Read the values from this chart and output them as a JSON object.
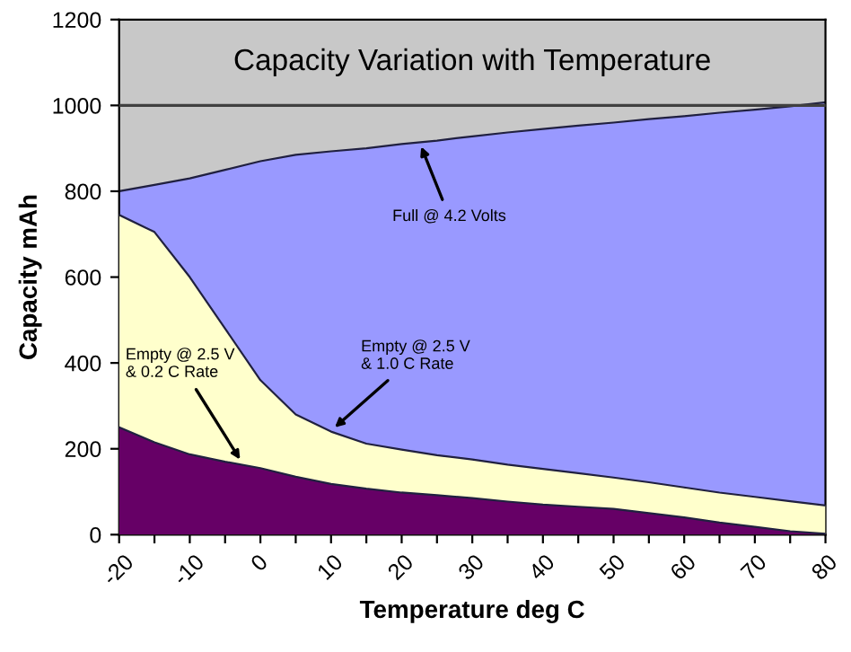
{
  "chart_data": {
    "type": "area",
    "title": "Capacity Variation with Temperature",
    "xlabel": "Temperature deg C",
    "ylabel": "Capacity mAh",
    "x": [
      -20,
      -15,
      -10,
      -5,
      0,
      5,
      10,
      15,
      20,
      25,
      30,
      35,
      40,
      45,
      50,
      55,
      60,
      65,
      70,
      75,
      80
    ],
    "series": [
      {
        "color": "#9999ff",
        "values": [
          800,
          815,
          830,
          850,
          870,
          885,
          893,
          900,
          910,
          918,
          928,
          937,
          945,
          953,
          960,
          968,
          975,
          983,
          990,
          998,
          1007
        ]
      },
      {
        "color": "#ffffcc",
        "values": [
          745,
          705,
          600,
          480,
          360,
          280,
          240,
          212,
          198,
          185,
          175,
          163,
          153,
          143,
          133,
          122,
          110,
          98,
          88,
          78,
          68
        ]
      },
      {
        "color": "#660066",
        "values": [
          250,
          215,
          187,
          170,
          155,
          135,
          118,
          107,
          98,
          92,
          85,
          77,
          70,
          65,
          60,
          50,
          40,
          28,
          18,
          8,
          2
        ]
      }
    ],
    "annotations": [
      {
        "text": "Full @ 4.2 Volts",
        "x": 22.5,
        "y": 915
      },
      {
        "text": "Empty @ 2.5 V\n& 1.0 C Rate",
        "x": 10,
        "y": 242
      },
      {
        "text": "Empty @ 2.5 V\n& 0.2 C Rate",
        "x": -2.5,
        "y": 165
      }
    ],
    "ref_lines": [
      {
        "axis": "y",
        "value": 1000,
        "color": "#404040"
      }
    ],
    "xlim": [
      -20,
      80
    ],
    "ylim": [
      0,
      1200
    ],
    "xticks": [
      -20,
      {
        "value": -15,
        "label": null
      },
      -10,
      {
        "value": -5,
        "label": null
      },
      0,
      {
        "value": 5,
        "label": null
      },
      10,
      {
        "value": 15,
        "label": null
      },
      20,
      {
        "value": 25,
        "label": null
      },
      30,
      {
        "value": 35,
        "label": null
      },
      40,
      {
        "value": 45,
        "label": null
      },
      50,
      {
        "value": 55,
        "label": null
      },
      60,
      {
        "value": 65,
        "label": null
      },
      70,
      {
        "value": 75,
        "label": null
      },
      80
    ],
    "yticks": [
      0,
      200,
      400,
      600,
      800,
      1000,
      1200
    ],
    "grid": false,
    "legend": false
  }
}
